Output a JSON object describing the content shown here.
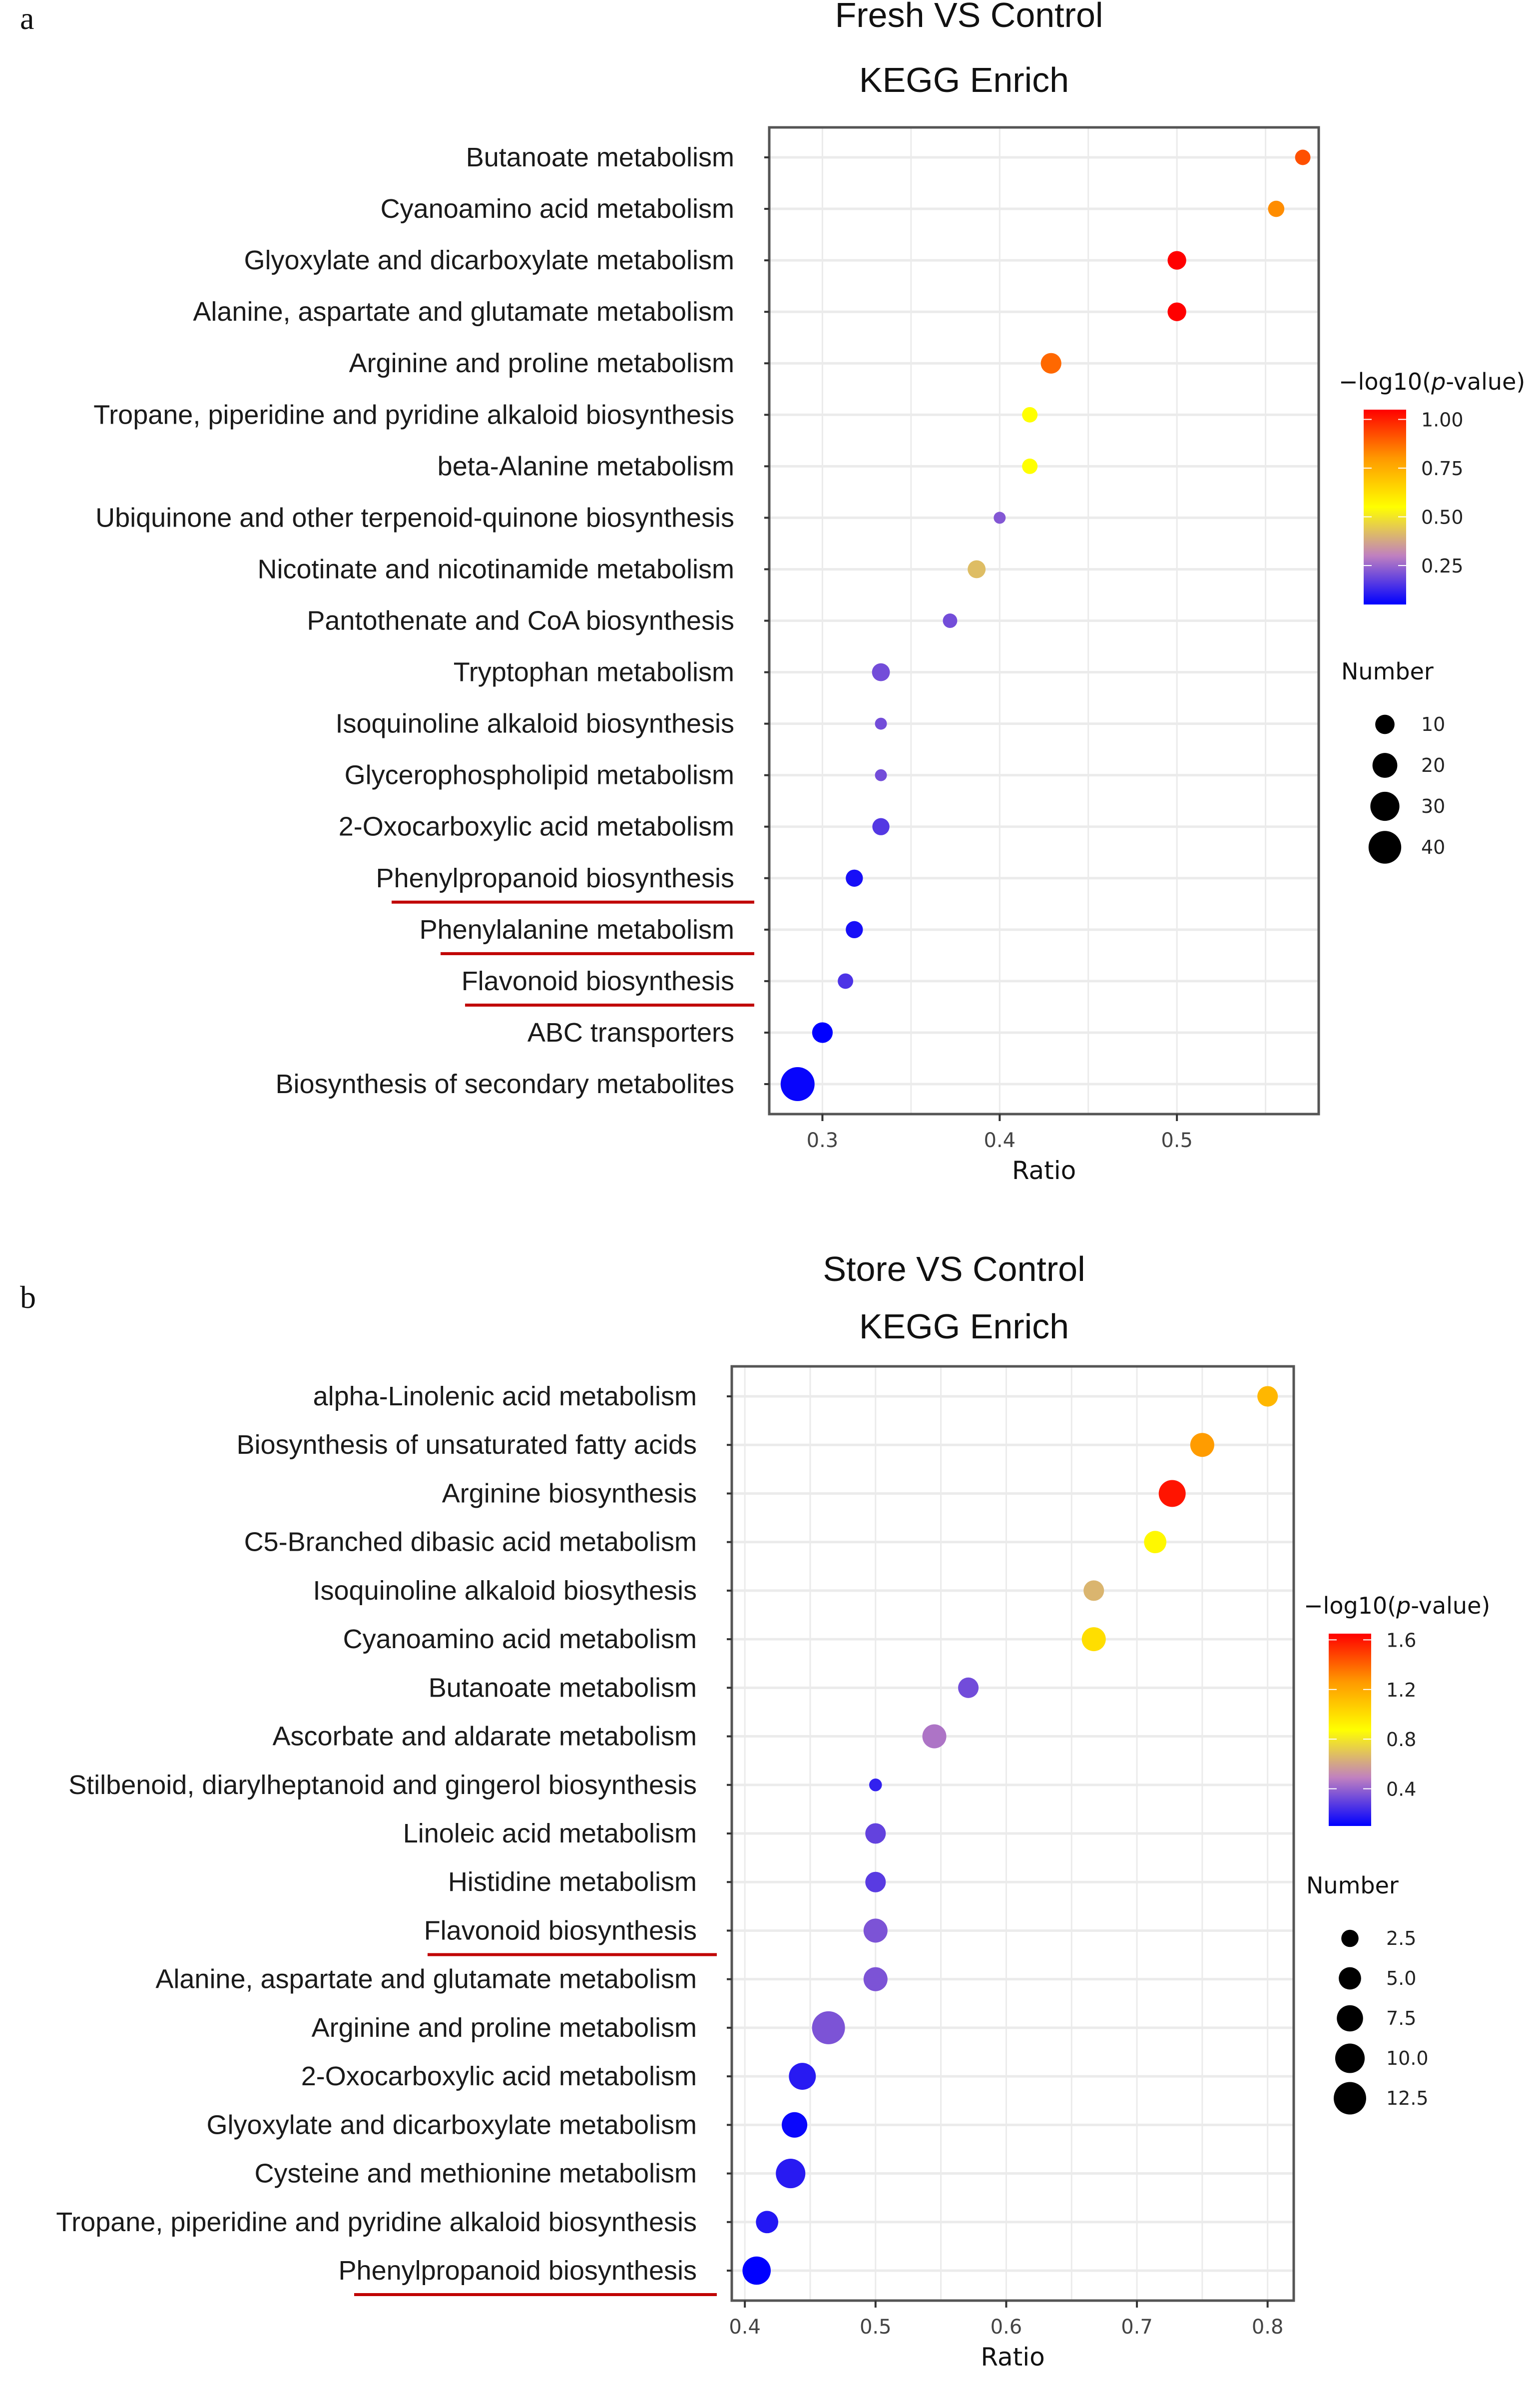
{
  "panels": [
    {
      "letter": "a"
    },
    {
      "letter": "b"
    }
  ],
  "chart_data": [
    {
      "type": "scatter",
      "subtype": "bubble",
      "title": "Fresh VS Control",
      "subtitle": "KEGG Enrich",
      "xlabel": "Ratio",
      "ylabel": "",
      "xlim": [
        0.27,
        0.58
      ],
      "xticks": [
        0.3,
        0.4,
        0.5
      ],
      "xtick_labels": [
        "0.3",
        "0.4",
        "0.5"
      ],
      "grid": true,
      "color_legend": {
        "title": "−log10(p-value)",
        "title_prefix": "−log10(",
        "title_italic": "p",
        "title_suffix": "-value)",
        "range": [
          0.05,
          1.05
        ],
        "ticks": [
          1.0,
          0.75,
          0.5,
          0.25
        ],
        "tick_labels": [
          "1.00",
          "0.75",
          "0.50",
          "0.25"
        ],
        "colors": [
          "#0000ff",
          "#c080c0",
          "#ffff00",
          "#ff9900",
          "#ff0000"
        ],
        "placement": "right-top"
      },
      "size_legend": {
        "title": "Number",
        "values": [
          10,
          20,
          30,
          40
        ],
        "labels": [
          "10",
          "20",
          "30",
          "40"
        ],
        "placement": "right-middle"
      },
      "highlighted": [
        "Phenylpropanoid biosynthesis",
        "Phenylalanine metabolism",
        "Flavonoid biosynthesis"
      ],
      "highlight_color": "#c00000",
      "categories": [
        "Butanoate metabolism",
        "Cyanoamino acid metabolism",
        "Glyoxylate and dicarboxylate metabolism",
        "Alanine, aspartate and glutamate metabolism",
        "Arginine and proline metabolism",
        "Tropane, piperidine and pyridine alkaloid biosynthesis",
        "beta-Alanine metabolism",
        "Ubiquinone and other terpenoid-quinone biosynthesis",
        "Nicotinate and nicotinamide metabolism",
        "Pantothenate and CoA biosynthesis",
        "Tryptophan metabolism",
        "Isoquinoline alkaloid biosynthesis",
        "Glycerophospholipid metabolism",
        "2-Oxocarboxylic acid metabolism",
        "Phenylpropanoid biosynthesis",
        "Phenylalanine metabolism",
        "Flavonoid biosynthesis",
        "ABC transporters",
        "Biosynthesis of secondary metabolites"
      ],
      "points": [
        {
          "ratio": 0.571,
          "neglog10p": 0.92,
          "number": 5
        },
        {
          "ratio": 0.556,
          "neglog10p": 0.82,
          "number": 6
        },
        {
          "ratio": 0.5,
          "neglog10p": 1.05,
          "number": 9
        },
        {
          "ratio": 0.5,
          "neglog10p": 1.05,
          "number": 9
        },
        {
          "ratio": 0.429,
          "neglog10p": 0.88,
          "number": 12
        },
        {
          "ratio": 0.417,
          "neglog10p": 0.55,
          "number": 5
        },
        {
          "ratio": 0.417,
          "neglog10p": 0.55,
          "number": 5
        },
        {
          "ratio": 0.4,
          "neglog10p": 0.22,
          "number": 2
        },
        {
          "ratio": 0.387,
          "neglog10p": 0.42,
          "number": 8
        },
        {
          "ratio": 0.372,
          "neglog10p": 0.2,
          "number": 4
        },
        {
          "ratio": 0.333,
          "neglog10p": 0.2,
          "number": 8
        },
        {
          "ratio": 0.333,
          "neglog10p": 0.2,
          "number": 2
        },
        {
          "ratio": 0.333,
          "neglog10p": 0.2,
          "number": 2
        },
        {
          "ratio": 0.333,
          "neglog10p": 0.16,
          "number": 7
        },
        {
          "ratio": 0.318,
          "neglog10p": 0.08,
          "number": 7
        },
        {
          "ratio": 0.318,
          "neglog10p": 0.08,
          "number": 7
        },
        {
          "ratio": 0.313,
          "neglog10p": 0.15,
          "number": 5
        },
        {
          "ratio": 0.3,
          "neglog10p": 0.05,
          "number": 12
        },
        {
          "ratio": 0.286,
          "neglog10p": 0.06,
          "number": 44
        }
      ]
    },
    {
      "type": "scatter",
      "subtype": "bubble",
      "title": "Store VS Control",
      "subtitle": "KEGG Enrich",
      "xlabel": "Ratio",
      "ylabel": "",
      "xlim": [
        0.39,
        0.82
      ],
      "xticks": [
        0.4,
        0.5,
        0.6,
        0.7,
        0.8
      ],
      "xtick_labels": [
        "0.4",
        "0.5",
        "0.6",
        "0.7",
        "0.8"
      ],
      "grid": true,
      "color_legend": {
        "title": "−log10(p-value)",
        "title_prefix": "−log10(",
        "title_italic": "p",
        "title_suffix": "-value)",
        "range": [
          0.1,
          1.65
        ],
        "ticks": [
          1.6,
          1.2,
          0.8,
          0.4
        ],
        "tick_labels": [
          "1.6",
          "1.2",
          "0.8",
          "0.4"
        ],
        "colors": [
          "#0000ff",
          "#c080c0",
          "#ffff00",
          "#ff9900",
          "#ff0000"
        ],
        "placement": "right-top"
      },
      "size_legend": {
        "title": "Number",
        "values": [
          2.5,
          5.0,
          7.5,
          10.0,
          12.5
        ],
        "labels": [
          "2.5",
          "5.0",
          "7.5",
          "10.0",
          "12.5"
        ],
        "placement": "right-middle"
      },
      "highlighted": [
        "Flavonoid biosynthesis",
        "Phenylpropanoid biosynthesis"
      ],
      "highlight_color": "#c00000",
      "categories": [
        "alpha-Linolenic acid metabolism",
        "Biosynthesis of unsaturated fatty acids",
        "Arginine biosynthesis",
        "C5-Branched dibasic acid metabolism",
        "Isoquinoline alkaloid biosythesis",
        "Cyanoamino acid metabolism",
        "Butanoate metabolism",
        "Ascorbate and aldarate metabolism",
        "Stilbenoid, diarylheptanoid and gingerol biosynthesis",
        "Linoleic acid metabolism",
        "Histidine metabolism",
        "Flavonoid biosynthesis",
        "Alanine, aspartate and glutamate metabolism",
        "Arginine and proline metabolism",
        "2-Oxocarboxylic acid metabolism",
        "Glyoxylate and dicarboxylate metabolism",
        "Cysteine and methionine metabolism",
        "Tropane, piperidine and pyridine alkaloid biosynthesis",
        "Phenylpropanoid biosynthesis"
      ],
      "points": [
        {
          "ratio": 0.8,
          "neglog10p": 1.15,
          "number": 4
        },
        {
          "ratio": 0.75,
          "neglog10p": 1.25,
          "number": 6
        },
        {
          "ratio": 0.727,
          "neglog10p": 1.6,
          "number": 8
        },
        {
          "ratio": 0.714,
          "neglog10p": 0.9,
          "number": 5
        },
        {
          "ratio": 0.667,
          "neglog10p": 0.65,
          "number": 4
        },
        {
          "ratio": 0.667,
          "neglog10p": 1.0,
          "number": 6
        },
        {
          "ratio": 0.571,
          "neglog10p": 0.33,
          "number": 4
        },
        {
          "ratio": 0.545,
          "neglog10p": 0.45,
          "number": 6
        },
        {
          "ratio": 0.5,
          "neglog10p": 0.2,
          "number": 1
        },
        {
          "ratio": 0.5,
          "neglog10p": 0.3,
          "number": 4
        },
        {
          "ratio": 0.5,
          "neglog10p": 0.28,
          "number": 4
        },
        {
          "ratio": 0.5,
          "neglog10p": 0.35,
          "number": 6
        },
        {
          "ratio": 0.5,
          "neglog10p": 0.35,
          "number": 6
        },
        {
          "ratio": 0.464,
          "neglog10p": 0.35,
          "number": 13
        },
        {
          "ratio": 0.444,
          "neglog10p": 0.18,
          "number": 8
        },
        {
          "ratio": 0.438,
          "neglog10p": 0.12,
          "number": 7
        },
        {
          "ratio": 0.435,
          "neglog10p": 0.18,
          "number": 10
        },
        {
          "ratio": 0.417,
          "neglog10p": 0.17,
          "number": 5
        },
        {
          "ratio": 0.409,
          "neglog10p": 0.1,
          "number": 9
        }
      ]
    }
  ]
}
